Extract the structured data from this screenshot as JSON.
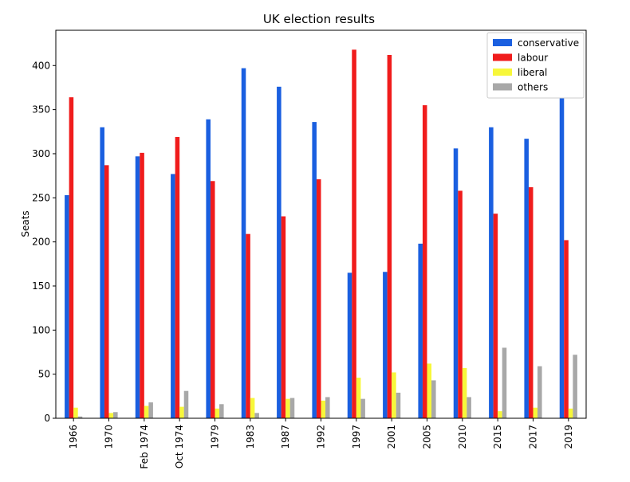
{
  "chart_data": {
    "type": "bar",
    "title": "UK election results",
    "ylabel": "Seats",
    "xlabel": "",
    "ylim": [
      0,
      440
    ],
    "yticks": [
      0,
      50,
      100,
      150,
      200,
      250,
      300,
      350,
      400
    ],
    "grid": false,
    "legend_position": "top-right",
    "categories": [
      "1966",
      "1970",
      "Feb 1974",
      "Oct 1974",
      "1979",
      "1983",
      "1987",
      "1992",
      "1997",
      "2001",
      "2005",
      "2010",
      "2015",
      "2017",
      "2019"
    ],
    "series": [
      {
        "name": "conservative",
        "color": "#1a5fe0",
        "values": [
          253,
          330,
          297,
          277,
          339,
          397,
          376,
          336,
          165,
          166,
          198,
          306,
          330,
          317,
          365
        ]
      },
      {
        "name": "labour",
        "color": "#f01c1c",
        "values": [
          364,
          287,
          301,
          319,
          269,
          209,
          229,
          271,
          418,
          412,
          355,
          258,
          232,
          262,
          202
        ]
      },
      {
        "name": "liberal",
        "color": "#f7f73a",
        "values": [
          12,
          6,
          14,
          13,
          11,
          23,
          22,
          20,
          46,
          52,
          62,
          57,
          8,
          12,
          11
        ]
      },
      {
        "name": "others",
        "color": "#a8a8a8",
        "values": [
          2,
          7,
          18,
          31,
          16,
          6,
          23,
          24,
          22,
          29,
          43,
          24,
          80,
          59,
          72
        ]
      }
    ]
  }
}
